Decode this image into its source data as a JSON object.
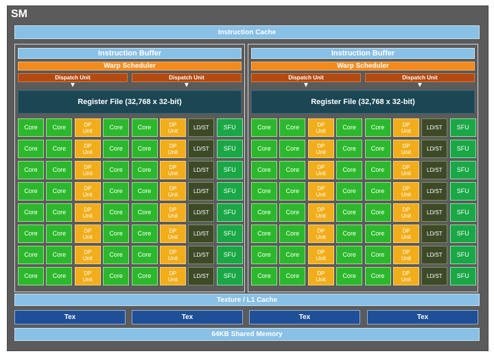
{
  "sm": {
    "label": "SM",
    "instruction_cache": "Instruction Cache",
    "halves": [
      {
        "instruction_buffer": "Instruction Buffer",
        "warp_scheduler": "Warp Scheduler",
        "dispatch_units": [
          "Dispatch Unit",
          "Dispatch Unit"
        ],
        "register_file": "Register File (32,768 x 32-bit)"
      },
      {
        "instruction_buffer": "Instruction Buffer",
        "warp_scheduler": "Warp Scheduler",
        "dispatch_units": [
          "Dispatch Unit",
          "Dispatch Unit"
        ],
        "register_file": "Register File (32,768 x 32-bit)"
      }
    ],
    "unit_row": [
      {
        "type": "core",
        "label": "Core"
      },
      {
        "type": "core",
        "label": "Core"
      },
      {
        "type": "dp",
        "label": "DP Unit"
      },
      {
        "type": "core",
        "label": "Core"
      },
      {
        "type": "core",
        "label": "Core"
      },
      {
        "type": "dp",
        "label": "DP Unit"
      },
      {
        "type": "ldst",
        "label": "LD/ST"
      },
      {
        "type": "sfu",
        "label": "SFU"
      }
    ],
    "unit_rows_count": 8,
    "texture_l1_cache": "Texture / L1 Cache",
    "tex_units": [
      "Tex",
      "Tex",
      "Tex",
      "Tex"
    ],
    "shared_memory": "64KB Shared Memory"
  },
  "colors": {
    "background": "#5b5b5b",
    "cache_light_blue": "#88c0e6",
    "warp_scheduler_orange": "#f28a1e",
    "dispatch_unit_rust": "#b24a12",
    "register_file_teal": "#1b4654",
    "core_green": "#2cb82c",
    "dp_unit_yellow": "#f1ad1a",
    "ldst_olive": "#3d4a28",
    "sfu_green": "#1aa746",
    "tex_dark_blue": "#1f4f97"
  }
}
